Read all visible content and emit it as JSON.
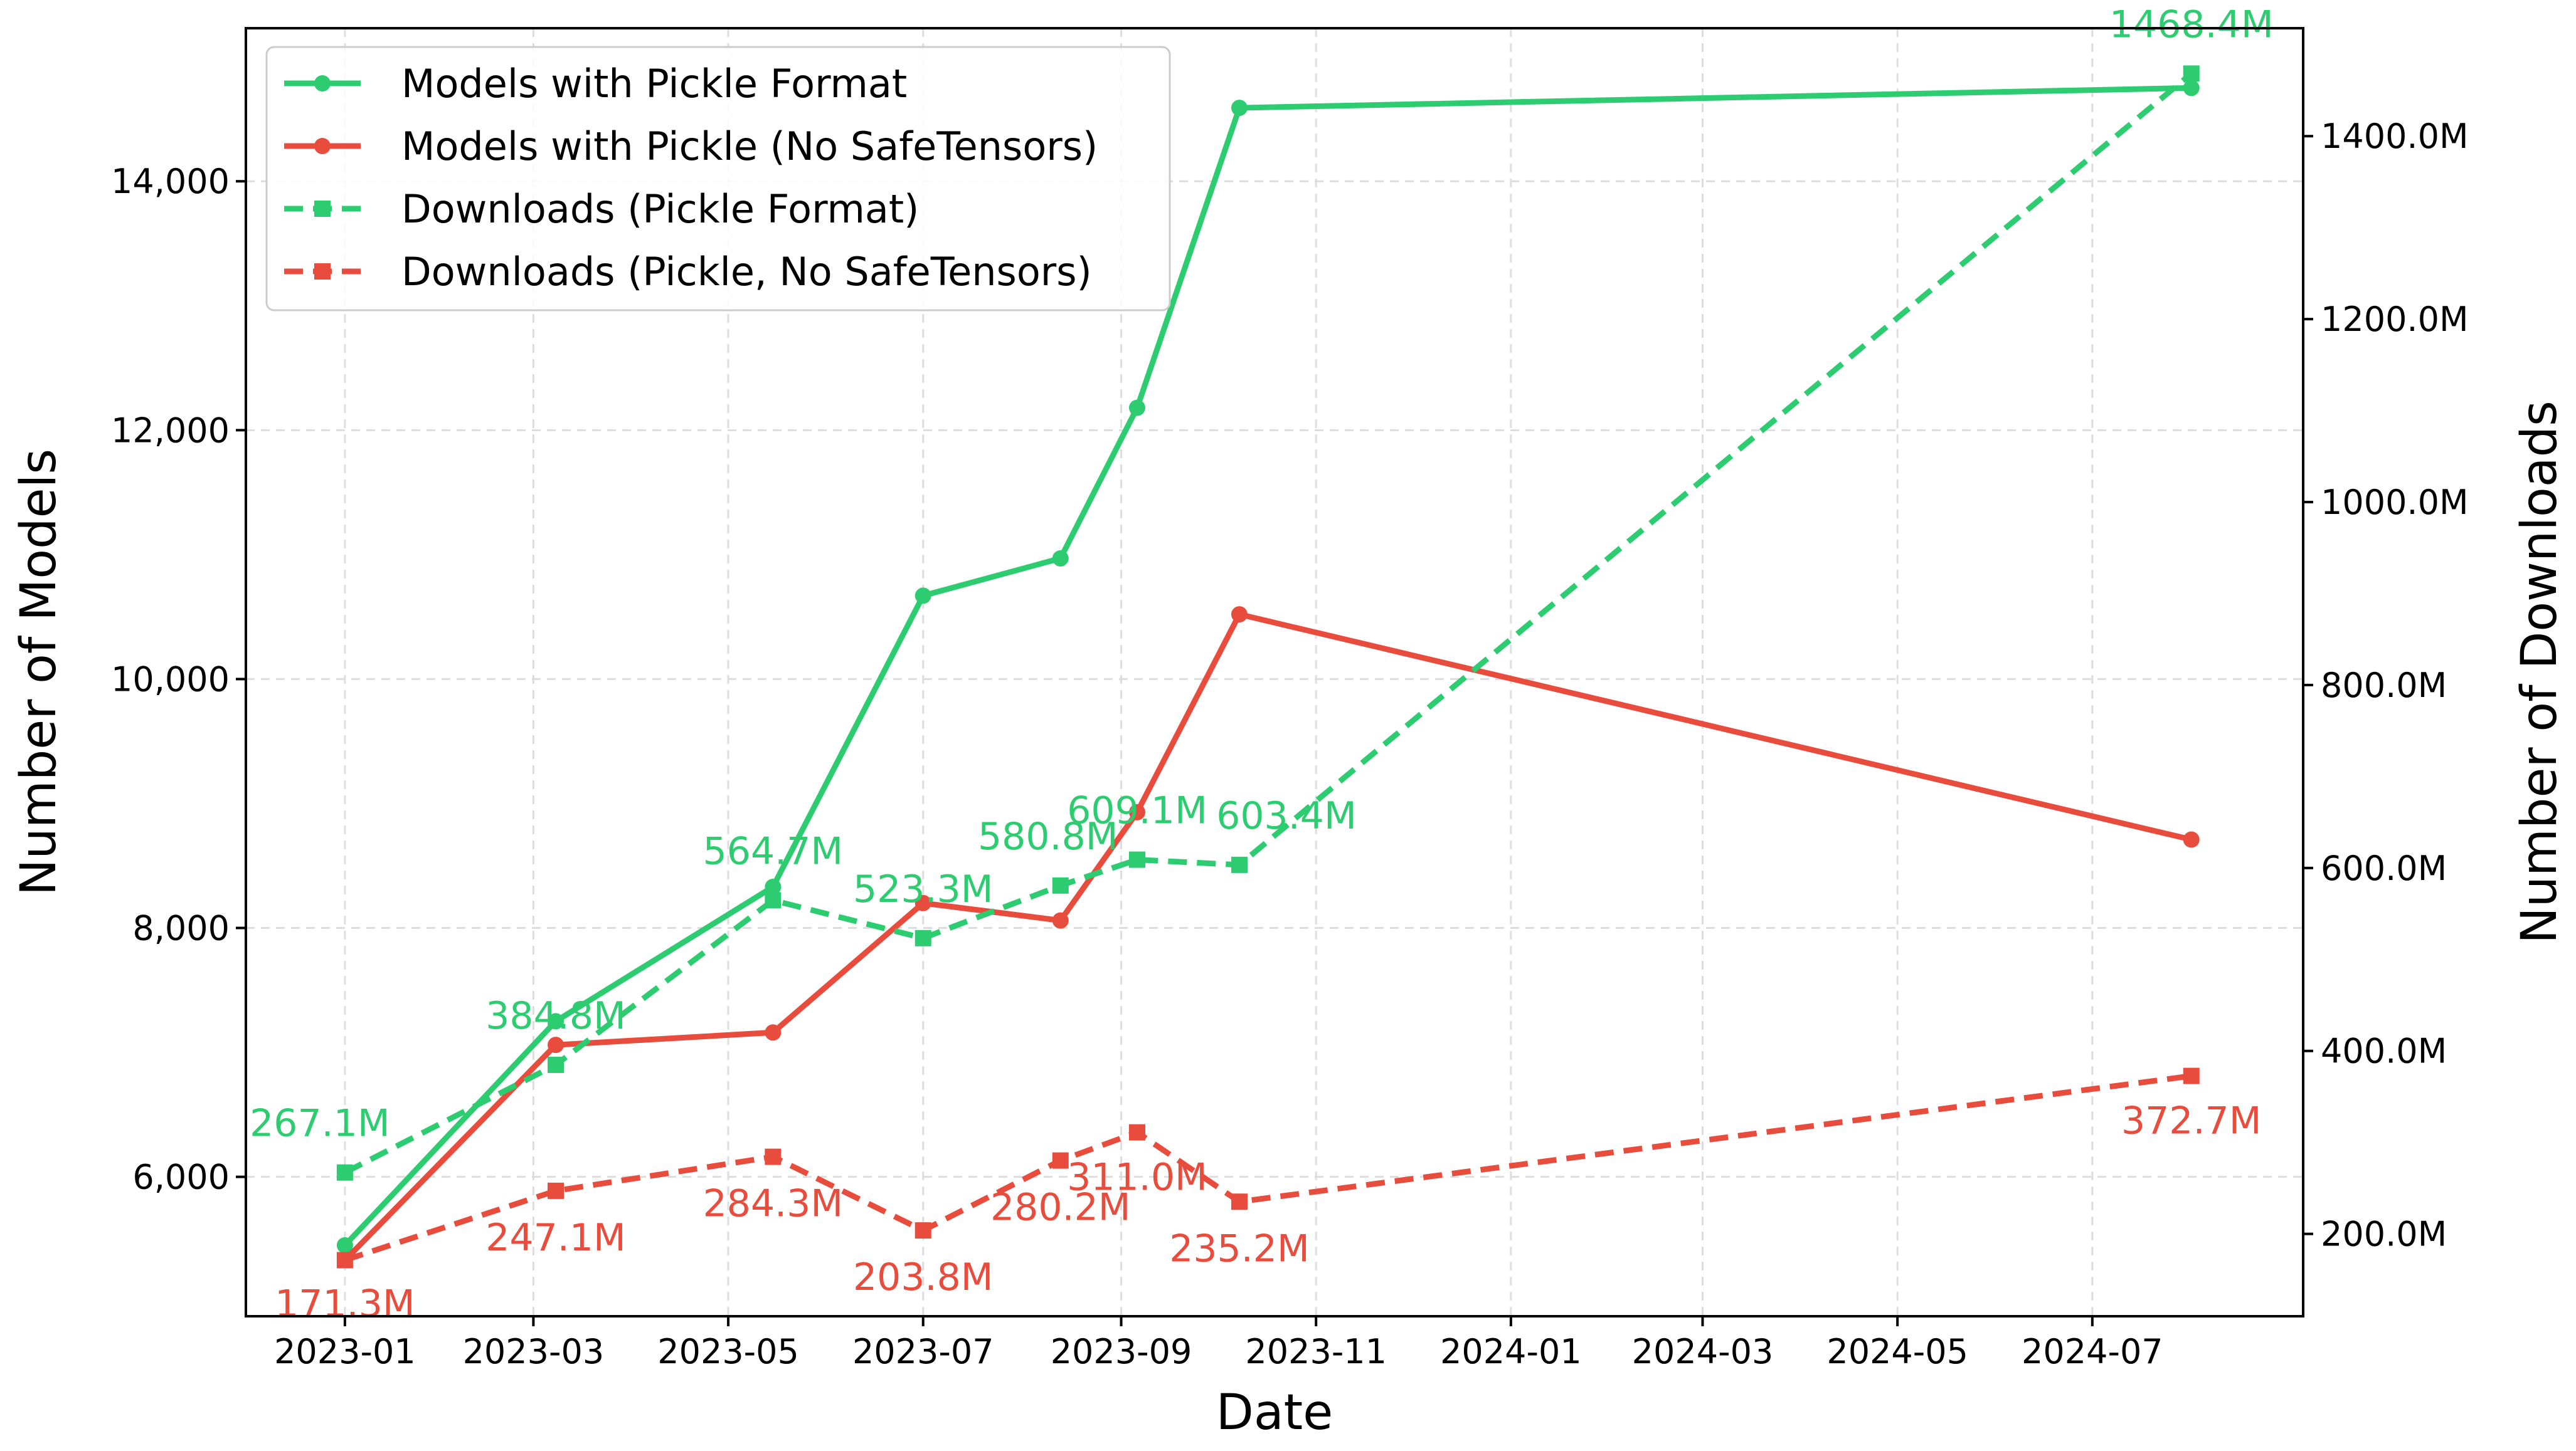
{
  "chart_data": {
    "type": "line",
    "xlabel": "Date",
    "ylabel": "Number of Models",
    "ylabel_right": "Number of Downloads",
    "grid": true,
    "legend_position": "top-left",
    "colors": {
      "green": "#2ecc71",
      "red": "#e74c3c"
    },
    "x_ticks": [
      "2023-01",
      "2023-03",
      "2023-05",
      "2023-07",
      "2023-09",
      "2023-11",
      "2024-01",
      "2024-03",
      "2024-05",
      "2024-07"
    ],
    "x": [
      "2023-01-01",
      "2023-03-08",
      "2023-05-15",
      "2023-07-01",
      "2023-08-13",
      "2023-09-06",
      "2023-10-08",
      "2024-08-01"
    ],
    "y_left_ticks": [
      6000,
      8000,
      10000,
      12000,
      14000
    ],
    "y_left_tick_labels": [
      "6,000",
      "8,000",
      "10,000",
      "12,000",
      "14,000"
    ],
    "y_right_ticks": [
      200,
      400,
      600,
      800,
      1000,
      1200,
      1400
    ],
    "y_right_tick_labels": [
      "200.0M",
      "400.0M",
      "600.0M",
      "800.0M",
      "1000.0M",
      "1200.0M",
      "1400.0M"
    ],
    "ylim_left": [
      4880,
      15230
    ],
    "ylim_right": [
      110,
      1518
    ],
    "series": [
      {
        "name": "Models with Pickle Format",
        "axis": "left",
        "style": "solid",
        "marker": "circle",
        "color": "#2ecc71",
        "values": [
          5450,
          7250,
          8330,
          10670,
          10970,
          12180,
          14590,
          14750
        ]
      },
      {
        "name": "Models with Pickle (No SafeTensors)",
        "axis": "left",
        "style": "solid",
        "marker": "circle",
        "color": "#e74c3c",
        "values": [
          5330,
          7060,
          7160,
          8200,
          8060,
          8930,
          10520,
          8710
        ]
      },
      {
        "name": "Downloads (Pickle Format)",
        "axis": "right",
        "style": "dashed",
        "marker": "square",
        "color": "#2ecc71",
        "values": [
          267.1,
          384.8,
          564.7,
          523.3,
          580.8,
          609.1,
          603.4,
          1468.4
        ],
        "labels": [
          "267.1M",
          "384.8M",
          "564.7M",
          "523.3M",
          "580.8M",
          "609.1M",
          "603.4M",
          "1468.4M"
        ]
      },
      {
        "name": "Downloads (Pickle, No SafeTensors)",
        "axis": "right",
        "style": "dashed",
        "marker": "square",
        "color": "#e74c3c",
        "values": [
          171.3,
          247.1,
          284.3,
          203.8,
          280.2,
          311.0,
          235.2,
          372.7
        ],
        "labels": [
          "171.3M",
          "247.1M",
          "284.3M",
          "203.8M",
          "280.2M",
          "311.0M",
          "235.2M",
          "372.7M"
        ]
      }
    ]
  }
}
